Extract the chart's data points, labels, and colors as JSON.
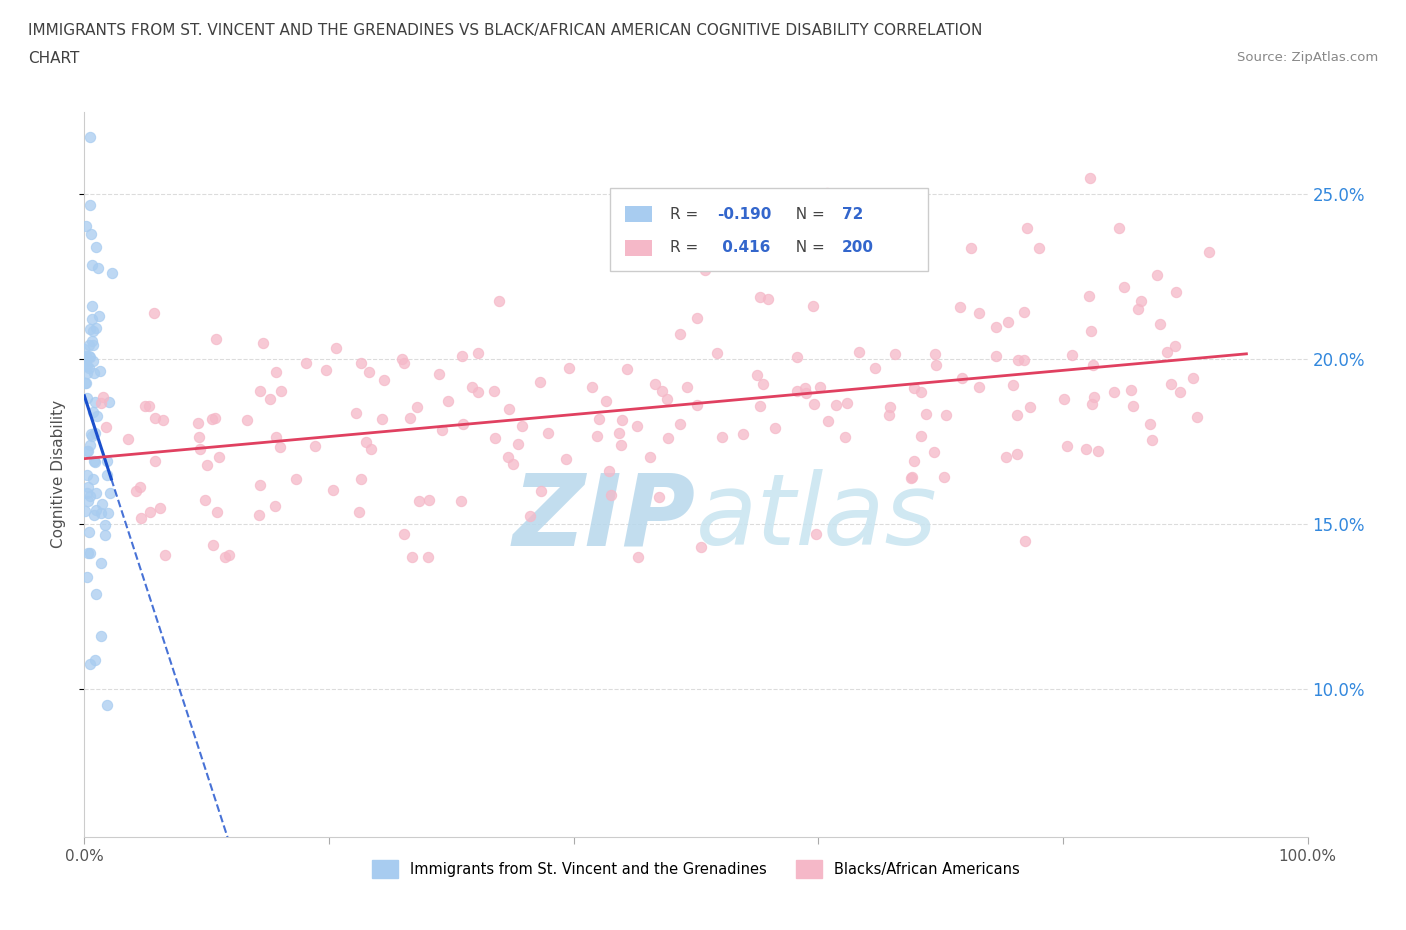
{
  "title_line1": "IMMIGRANTS FROM ST. VINCENT AND THE GRENADINES VS BLACK/AFRICAN AMERICAN COGNITIVE DISABILITY CORRELATION",
  "title_line2": "CHART",
  "source_text": "Source: ZipAtlas.com",
  "ylabel": "Cognitive Disability",
  "blue_R": -0.19,
  "blue_N": 72,
  "pink_R": 0.416,
  "pink_N": 200,
  "blue_color": "#A8CCF0",
  "pink_color": "#F5B8C8",
  "blue_line_color": "#1A4FCC",
  "pink_line_color": "#E04060",
  "blue_label": "Immigrants from St. Vincent and the Grenadines",
  "pink_label": "Blacks/African Americans",
  "xlim": [
    0.0,
    1.0
  ],
  "ylim": [
    0.055,
    0.275
  ],
  "yticks": [
    0.1,
    0.15,
    0.2,
    0.25
  ],
  "ytick_labels": [
    "10.0%",
    "15.0%",
    "20.0%",
    "25.0%"
  ],
  "xticks": [
    0.0,
    0.2,
    0.4,
    0.6,
    0.8,
    1.0
  ],
  "xtick_labels": [
    "0.0%",
    "",
    "",
    "",
    "",
    "100.0%"
  ],
  "background_color": "#FFFFFF",
  "watermark_color": "#C8DFF0",
  "grid_color": "#DCDCDC",
  "title_color": "#404040",
  "source_color": "#888888",
  "axis_label_color": "#505050",
  "right_ytick_color": "#3388DD",
  "legend_R_color": "#3366CC",
  "legend_text_color": "#444444"
}
